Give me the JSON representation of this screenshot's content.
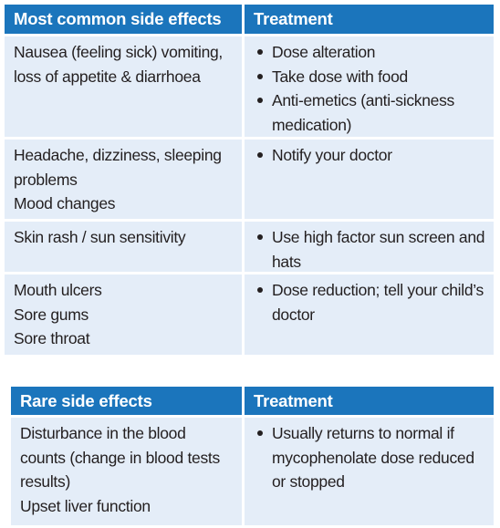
{
  "tables": [
    {
      "header": [
        "Most common side effects",
        "Treatment"
      ],
      "rows": [
        {
          "effects": [
            "Nausea (feeling sick) vomiting, loss of appetite & diarrhoea"
          ],
          "treatment": [
            "Dose alteration",
            "Take dose with food",
            "Anti-emetics (anti-sickness medication)"
          ]
        },
        {
          "effects": [
            "Headache, dizziness, sleeping problems",
            "Mood changes"
          ],
          "treatment": [
            "Notify your doctor"
          ]
        },
        {
          "effects": [
            "Skin rash / sun sensitivity"
          ],
          "treatment": [
            "Use high factor sun screen and hats"
          ]
        },
        {
          "effects": [
            "Mouth ulcers",
            "Sore gums",
            "Sore throat"
          ],
          "treatment": [
            "Dose reduction; tell your child’s doctor"
          ]
        }
      ]
    },
    {
      "header": [
        "Rare side effects",
        "Treatment"
      ],
      "rows": [
        {
          "effects": [
            "Disturbance in the blood counts (change in blood tests results)",
            "Upset liver function"
          ],
          "treatment": [
            "Usually returns to normal if mycophenolate dose reduced or stopped"
          ]
        }
      ]
    }
  ]
}
